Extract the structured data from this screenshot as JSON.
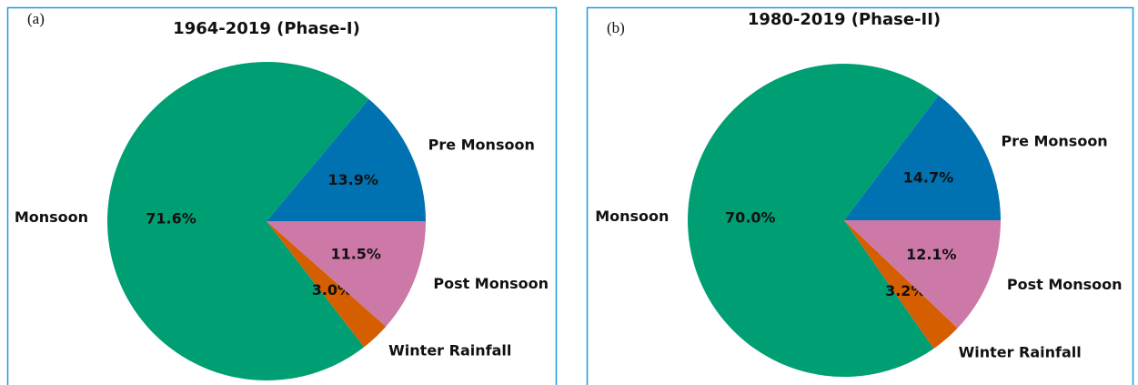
{
  "chart_data": [
    {
      "type": "pie",
      "panel_label": "(a)",
      "title": "1964-2019 (Phase-I)",
      "categories": [
        "Pre Monsoon",
        "Monsoon",
        "Winter Rainfall",
        "Post Monsoon"
      ],
      "values": [
        13.9,
        71.6,
        3.0,
        11.5
      ],
      "value_labels": [
        "13.9%",
        "71.6%",
        "3.0%",
        "11.5%"
      ],
      "colors": [
        "#0072b2",
        "#009e73",
        "#d55e00",
        "#cc79a7"
      ]
    },
    {
      "type": "pie",
      "panel_label": "(b)",
      "title": "1980-2019 (Phase-II)",
      "categories": [
        "Pre Monsoon",
        "Monsoon",
        "Winter Rainfall",
        "Post Monsoon"
      ],
      "values": [
        14.7,
        70.0,
        3.2,
        12.1
      ],
      "value_labels": [
        "14.7%",
        "70.0%",
        "3.2%",
        "12.1%"
      ],
      "colors": [
        "#0072b2",
        "#009e73",
        "#d55e00",
        "#cc79a7"
      ]
    }
  ]
}
